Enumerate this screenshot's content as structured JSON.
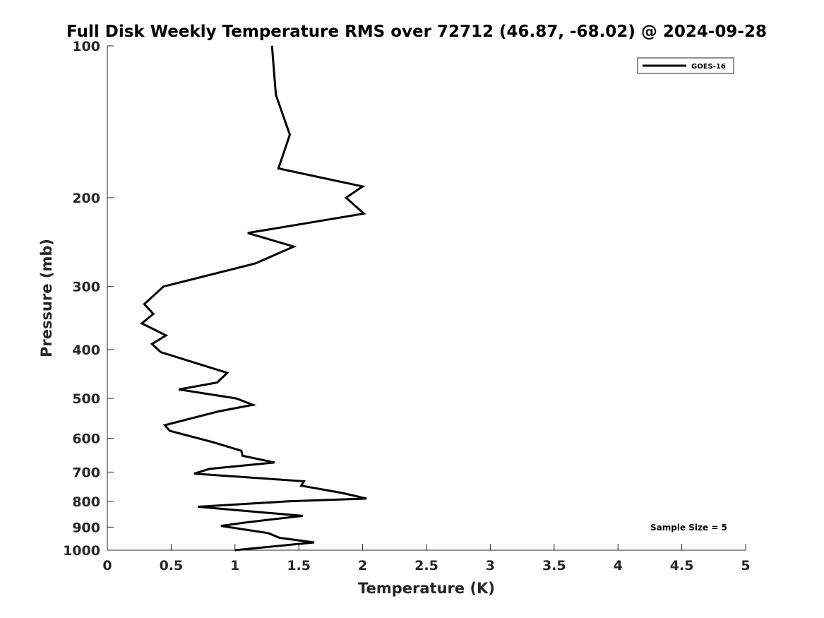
{
  "chart_data": {
    "type": "line",
    "title": "Full Disk Weekly Temperature RMS over 72712 (46.87, -68.02) @ 2024-09-28",
    "xlabel": "Temperature (K)",
    "ylabel": "Pressure (mb)",
    "xlim": [
      0,
      5
    ],
    "ylim": [
      100,
      1000
    ],
    "y_scale": "log",
    "y_reversed": true,
    "x_ticks": [
      "0",
      "0.5",
      "1",
      "1.5",
      "2",
      "2.5",
      "3",
      "3.5",
      "4",
      "4.5",
      "5"
    ],
    "y_ticks": [
      "100",
      "200",
      "300",
      "400",
      "500",
      "600",
      "700",
      "800",
      "900",
      "1000"
    ],
    "grid": false,
    "legend_position": "top-right",
    "annotation": "Sample Size = 5",
    "series": [
      {
        "name": "GOES-16",
        "color": "#000000",
        "points": [
          [
            1.29,
            100
          ],
          [
            1.32,
            125
          ],
          [
            1.43,
            150
          ],
          [
            1.34,
            175
          ],
          [
            2.0,
            190
          ],
          [
            1.87,
            200
          ],
          [
            2.01,
            215
          ],
          [
            1.1,
            235
          ],
          [
            1.46,
            250
          ],
          [
            1.16,
            270
          ],
          [
            0.44,
            300
          ],
          [
            0.29,
            325
          ],
          [
            0.36,
            340
          ],
          [
            0.27,
            355
          ],
          [
            0.46,
            375
          ],
          [
            0.35,
            390
          ],
          [
            0.42,
            405
          ],
          [
            0.94,
            445
          ],
          [
            0.86,
            465
          ],
          [
            0.56,
            480
          ],
          [
            1.01,
            500
          ],
          [
            1.14,
            515
          ],
          [
            0.88,
            530
          ],
          [
            0.45,
            565
          ],
          [
            0.49,
            580
          ],
          [
            0.82,
            610
          ],
          [
            1.05,
            635
          ],
          [
            1.06,
            650
          ],
          [
            1.31,
            670
          ],
          [
            0.8,
            690
          ],
          [
            0.68,
            705
          ],
          [
            1.54,
            730
          ],
          [
            1.52,
            745
          ],
          [
            1.84,
            770
          ],
          [
            2.03,
            790
          ],
          [
            1.42,
            800
          ],
          [
            0.71,
            820
          ],
          [
            1.53,
            855
          ],
          [
            1.1,
            880
          ],
          [
            0.89,
            895
          ],
          [
            1.26,
            925
          ],
          [
            1.35,
            945
          ],
          [
            1.62,
            965
          ],
          [
            1.0,
            1000
          ]
        ]
      }
    ]
  }
}
